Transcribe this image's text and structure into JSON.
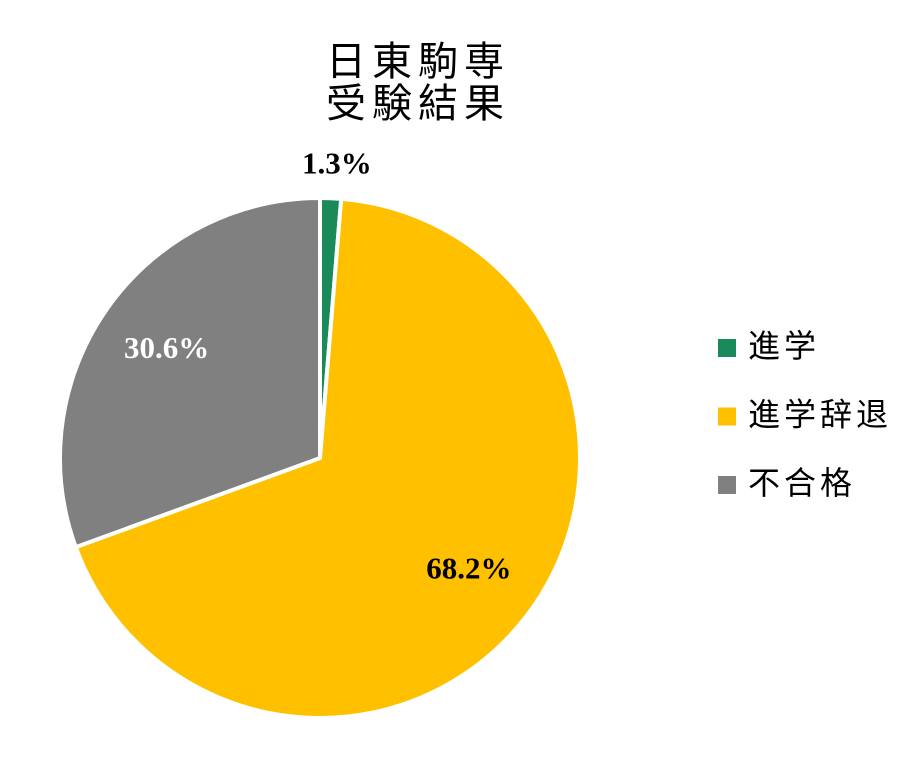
{
  "chart_data": {
    "type": "pie",
    "title": [
      "日東駒専",
      "受験結果"
    ],
    "categories": [
      "進学",
      "進学辞退",
      "不合格"
    ],
    "values": [
      1.3,
      68.2,
      30.6
    ],
    "value_labels": [
      "1.3%",
      "68.2%",
      "30.6%"
    ],
    "colors": [
      "#1b8a5a",
      "#ffc000",
      "#808080"
    ],
    "legend": "right"
  }
}
